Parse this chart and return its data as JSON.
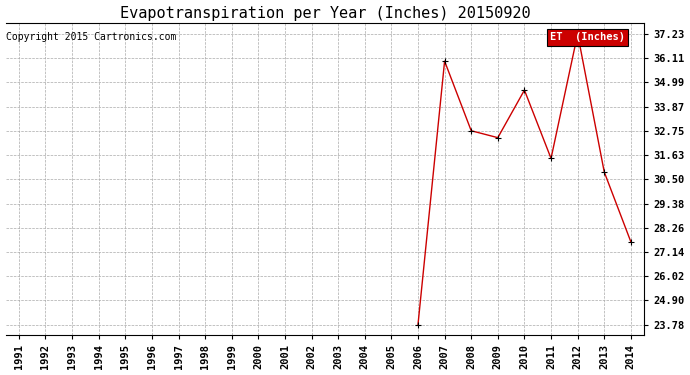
{
  "title": "Evapotranspiration per Year (Inches) 20150920",
  "copyright": "Copyright 2015 Cartronics.com",
  "legend_label": "ET  (Inches)",
  "years": [
    1991,
    1992,
    1993,
    1994,
    1995,
    1996,
    1997,
    1998,
    1999,
    2000,
    2001,
    2002,
    2003,
    2004,
    2005,
    2006,
    2007,
    2008,
    2009,
    2010,
    2011,
    2012,
    2013,
    2014
  ],
  "values": [
    null,
    null,
    null,
    null,
    null,
    null,
    null,
    null,
    null,
    null,
    null,
    null,
    null,
    null,
    null,
    23.78,
    35.97,
    32.75,
    32.43,
    34.63,
    31.47,
    37.23,
    30.84,
    27.61
  ],
  "line_color": "#cc0000",
  "marker": "+",
  "marker_size": 5,
  "ylim_min": 23.28,
  "ylim_max": 37.73,
  "ytick_values": [
    23.78,
    24.9,
    26.02,
    27.14,
    28.26,
    29.38,
    30.5,
    31.63,
    32.75,
    33.87,
    34.99,
    36.11,
    37.23
  ],
  "background_color": "#ffffff",
  "grid_color": "#aaaaaa",
  "title_fontsize": 11,
  "tick_fontsize": 7.5,
  "copyright_fontsize": 7,
  "legend_bg": "#cc0000",
  "legend_fg": "#ffffff",
  "legend_fontsize": 7.5
}
